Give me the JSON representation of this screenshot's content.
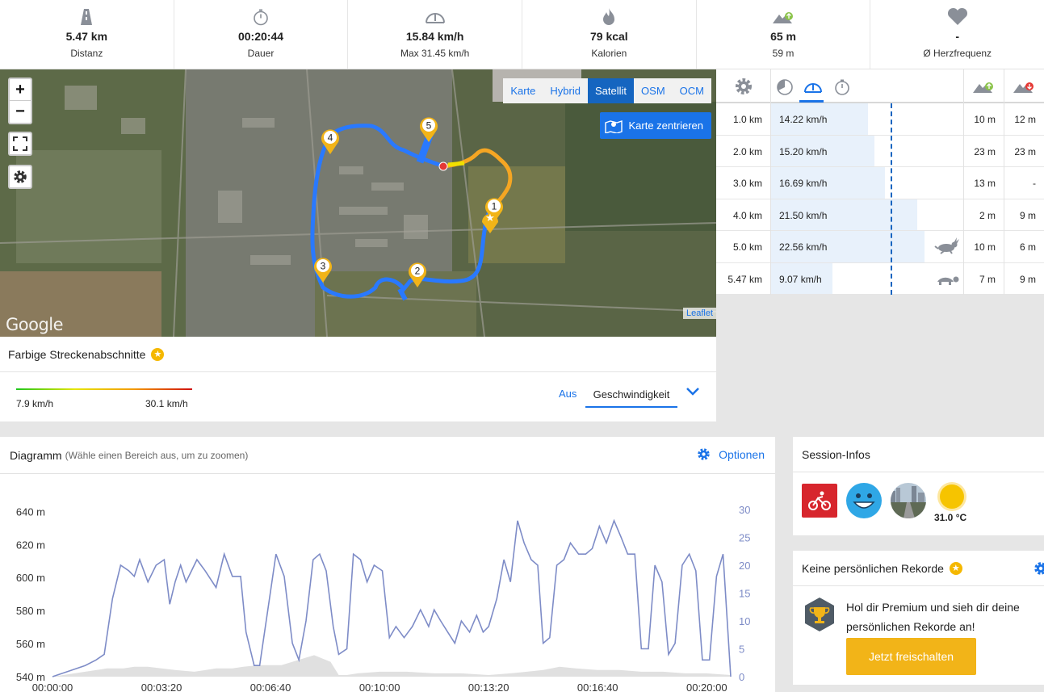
{
  "stats": [
    {
      "icon": "road-icon",
      "value": "5.47 km",
      "label": "Distanz"
    },
    {
      "icon": "stopwatch-icon",
      "value": "00:20:44",
      "label": "Dauer"
    },
    {
      "icon": "speedometer-icon",
      "value": "15.84 km/h",
      "label": "Max 31.45 km/h"
    },
    {
      "icon": "flame-icon",
      "value": "79 kcal",
      "label": "Kalorien"
    },
    {
      "icon": "elevation-up-icon",
      "value": "65 m",
      "label": "59 m"
    },
    {
      "icon": "heart-icon",
      "value": "-",
      "label": "Ø Herzfrequenz"
    }
  ],
  "map": {
    "layers": [
      "Karte",
      "Hybrid",
      "Satellit",
      "OSM",
      "OCM"
    ],
    "active_layer": "Satellit",
    "center_label": "Karte zentrieren",
    "zoom_in": "+",
    "zoom_out": "−",
    "google_label": "Google",
    "leaflet_label": "Leaflet",
    "markers": [
      "1",
      "2",
      "3",
      "4",
      "5"
    ]
  },
  "segments": {
    "title": "Farbige Streckenabschnitte",
    "min": "7.9 km/h",
    "max": "30.1 km/h",
    "off_label": "Aus",
    "selected": "Geschwindigkeit"
  },
  "splits": {
    "rows": [
      {
        "km": "1.0 km",
        "speed": "14.22 km/h",
        "up": "10 m",
        "down": "12 m",
        "pace": 14.22,
        "tag": ""
      },
      {
        "km": "2.0 km",
        "speed": "15.20 km/h",
        "up": "23 m",
        "down": "23 m",
        "pace": 15.2,
        "tag": ""
      },
      {
        "km": "3.0 km",
        "speed": "16.69 km/h",
        "up": "13 m",
        "down": "-",
        "pace": 16.69,
        "tag": ""
      },
      {
        "km": "4.0 km",
        "speed": "21.50 km/h",
        "up": "2 m",
        "down": "9 m",
        "pace": 21.5,
        "tag": ""
      },
      {
        "km": "5.0 km",
        "speed": "22.56 km/h",
        "up": "10 m",
        "down": "6 m",
        "pace": 22.56,
        "tag": "rabbit-icon"
      },
      {
        "km": "5.47 km",
        "speed": "9.07 km/h",
        "up": "7 m",
        "down": "9 m",
        "pace": 9.07,
        "tag": "turtle-icon"
      }
    ]
  },
  "diagram": {
    "title": "Diagramm",
    "hint": "(Wähle einen Bereich aus, um zu zoomen)",
    "options_label": "Optionen"
  },
  "chart_data": {
    "type": "line",
    "x_ticks": [
      "00:00:00",
      "00:03:20",
      "00:06:40",
      "00:10:00",
      "00:13:20",
      "00:16:40",
      "00:20:00"
    ],
    "y_left_ticks": [
      "540 m",
      "560 m",
      "580 m",
      "600 m",
      "620 m",
      "640 m"
    ],
    "y_left_range": [
      540,
      648
    ],
    "y_right_ticks": [
      "0",
      "5",
      "10",
      "15",
      "20",
      "25",
      "30"
    ],
    "y_right_range": [
      0,
      30
    ],
    "x_range_seconds": [
      0,
      1244
    ],
    "speed_series": [
      [
        0,
        0
      ],
      [
        30,
        1
      ],
      [
        60,
        2
      ],
      [
        80,
        3
      ],
      [
        95,
        4
      ],
      [
        110,
        14
      ],
      [
        125,
        20
      ],
      [
        140,
        19
      ],
      [
        150,
        18
      ],
      [
        160,
        21
      ],
      [
        175,
        17
      ],
      [
        190,
        20
      ],
      [
        205,
        21
      ],
      [
        215,
        13
      ],
      [
        225,
        17
      ],
      [
        235,
        20
      ],
      [
        245,
        17
      ],
      [
        255,
        19
      ],
      [
        265,
        21
      ],
      [
        280,
        19
      ],
      [
        300,
        16
      ],
      [
        315,
        22
      ],
      [
        330,
        18
      ],
      [
        345,
        18
      ],
      [
        355,
        8
      ],
      [
        370,
        2
      ],
      [
        380,
        2
      ],
      [
        395,
        12
      ],
      [
        410,
        22
      ],
      [
        425,
        18
      ],
      [
        440,
        6
      ],
      [
        452,
        3
      ],
      [
        465,
        10
      ],
      [
        478,
        21
      ],
      [
        490,
        22
      ],
      [
        502,
        19
      ],
      [
        515,
        9
      ],
      [
        525,
        4
      ],
      [
        540,
        5
      ],
      [
        552,
        22
      ],
      [
        565,
        21
      ],
      [
        577,
        17
      ],
      [
        590,
        20
      ],
      [
        605,
        19
      ],
      [
        618,
        7
      ],
      [
        630,
        9
      ],
      [
        645,
        7
      ],
      [
        660,
        9
      ],
      [
        675,
        12
      ],
      [
        690,
        9
      ],
      [
        700,
        12
      ],
      [
        712,
        10
      ],
      [
        725,
        8
      ],
      [
        738,
        6
      ],
      [
        750,
        10
      ],
      [
        765,
        8
      ],
      [
        778,
        11
      ],
      [
        790,
        8
      ],
      [
        800,
        9
      ],
      [
        815,
        14
      ],
      [
        828,
        21
      ],
      [
        840,
        17
      ],
      [
        853,
        28
      ],
      [
        865,
        24
      ],
      [
        878,
        21
      ],
      [
        890,
        20
      ],
      [
        900,
        6
      ],
      [
        912,
        7
      ],
      [
        925,
        20
      ],
      [
        938,
        21
      ],
      [
        950,
        24
      ],
      [
        965,
        22
      ],
      [
        978,
        22
      ],
      [
        990,
        23
      ],
      [
        1003,
        27
      ],
      [
        1016,
        24
      ],
      [
        1030,
        28
      ],
      [
        1043,
        25
      ],
      [
        1055,
        22
      ],
      [
        1068,
        22
      ],
      [
        1080,
        5
      ],
      [
        1093,
        5
      ],
      [
        1105,
        20
      ],
      [
        1118,
        17
      ],
      [
        1130,
        4
      ],
      [
        1142,
        6
      ],
      [
        1155,
        20
      ],
      [
        1168,
        22
      ],
      [
        1180,
        19
      ],
      [
        1192,
        3
      ],
      [
        1205,
        3
      ],
      [
        1218,
        18
      ],
      [
        1230,
        22
      ],
      [
        1244,
        0
      ]
    ],
    "elevation_series": [
      [
        0,
        540
      ],
      [
        60,
        543
      ],
      [
        100,
        545
      ],
      [
        130,
        545
      ],
      [
        150,
        546
      ],
      [
        175,
        546
      ],
      [
        200,
        545
      ],
      [
        225,
        544
      ],
      [
        260,
        543
      ],
      [
        300,
        545
      ],
      [
        330,
        545
      ],
      [
        350,
        546
      ],
      [
        380,
        547
      ],
      [
        400,
        547
      ],
      [
        420,
        547
      ],
      [
        440,
        549
      ],
      [
        460,
        551
      ],
      [
        480,
        553
      ],
      [
        495,
        551
      ],
      [
        510,
        549
      ],
      [
        525,
        541
      ],
      [
        540,
        541
      ],
      [
        560,
        542
      ],
      [
        600,
        543
      ],
      [
        650,
        543
      ],
      [
        700,
        542
      ],
      [
        750,
        542
      ],
      [
        800,
        541
      ],
      [
        840,
        542
      ],
      [
        870,
        543
      ],
      [
        900,
        544
      ],
      [
        930,
        546
      ],
      [
        960,
        545
      ],
      [
        1000,
        544
      ],
      [
        1040,
        544
      ],
      [
        1080,
        543
      ],
      [
        1120,
        543
      ],
      [
        1160,
        542
      ],
      [
        1200,
        542
      ],
      [
        1244,
        541
      ]
    ]
  },
  "session": {
    "title": "Session-Infos",
    "temperature": "31.0 °C",
    "icons": [
      "cycling-icon",
      "happy-face-icon",
      "road-scene-icon",
      "sun-icon"
    ]
  },
  "records": {
    "title": "Keine persönlichen Rekorde",
    "text": "Hol dir Premium und sieh dir deine persönlichen Rekorde an!",
    "button": "Jetzt freischalten"
  },
  "colors": {
    "accent": "#1a73e8",
    "route_blue": "#2979ff",
    "speed_line": "#7e8cc7",
    "elevation_fill": "#e0e0e0",
    "premium": "#f2b418"
  }
}
